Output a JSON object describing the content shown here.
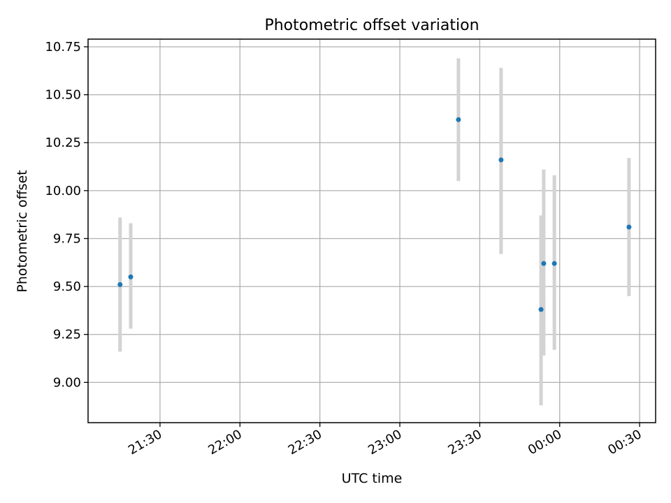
{
  "chart_data": {
    "type": "scatter",
    "title": "Photometric offset variation",
    "xlabel": "UTC time",
    "ylabel": "Photometric offset",
    "x_axis": {
      "kind": "time",
      "range": [
        "21:03",
        "00:36"
      ],
      "ticks": [
        "21:30",
        "22:00",
        "22:30",
        "23:00",
        "23:30",
        "00:00",
        "00:30"
      ]
    },
    "y_axis": {
      "range": [
        8.79,
        10.79
      ],
      "ticks": [
        "9.00",
        "9.25",
        "9.50",
        "9.75",
        "10.00",
        "10.25",
        "10.50",
        "10.75"
      ]
    },
    "grid": true,
    "colors": {
      "marker": "#1f77b4",
      "errorbar": "#d3d3d3",
      "grid": "#b0b0b0"
    },
    "series": [
      {
        "points": [
          {
            "x": "21:15",
            "y": 9.51,
            "ylow": 9.16,
            "yhigh": 9.86
          },
          {
            "x": "21:19",
            "y": 9.55,
            "ylow": 9.28,
            "yhigh": 9.83
          },
          {
            "x": "23:22",
            "y": 10.37,
            "ylow": 10.05,
            "yhigh": 10.69
          },
          {
            "x": "23:38",
            "y": 10.16,
            "ylow": 9.67,
            "yhigh": 10.64
          },
          {
            "x": "23:53",
            "y": 9.38,
            "ylow": 8.88,
            "yhigh": 9.87
          },
          {
            "x": "23:54",
            "y": 9.62,
            "ylow": 9.14,
            "yhigh": 10.11
          },
          {
            "x": "23:58",
            "y": 9.62,
            "ylow": 9.17,
            "yhigh": 10.08
          },
          {
            "x": "00:26",
            "y": 9.81,
            "ylow": 9.45,
            "yhigh": 10.17
          }
        ]
      }
    ]
  }
}
